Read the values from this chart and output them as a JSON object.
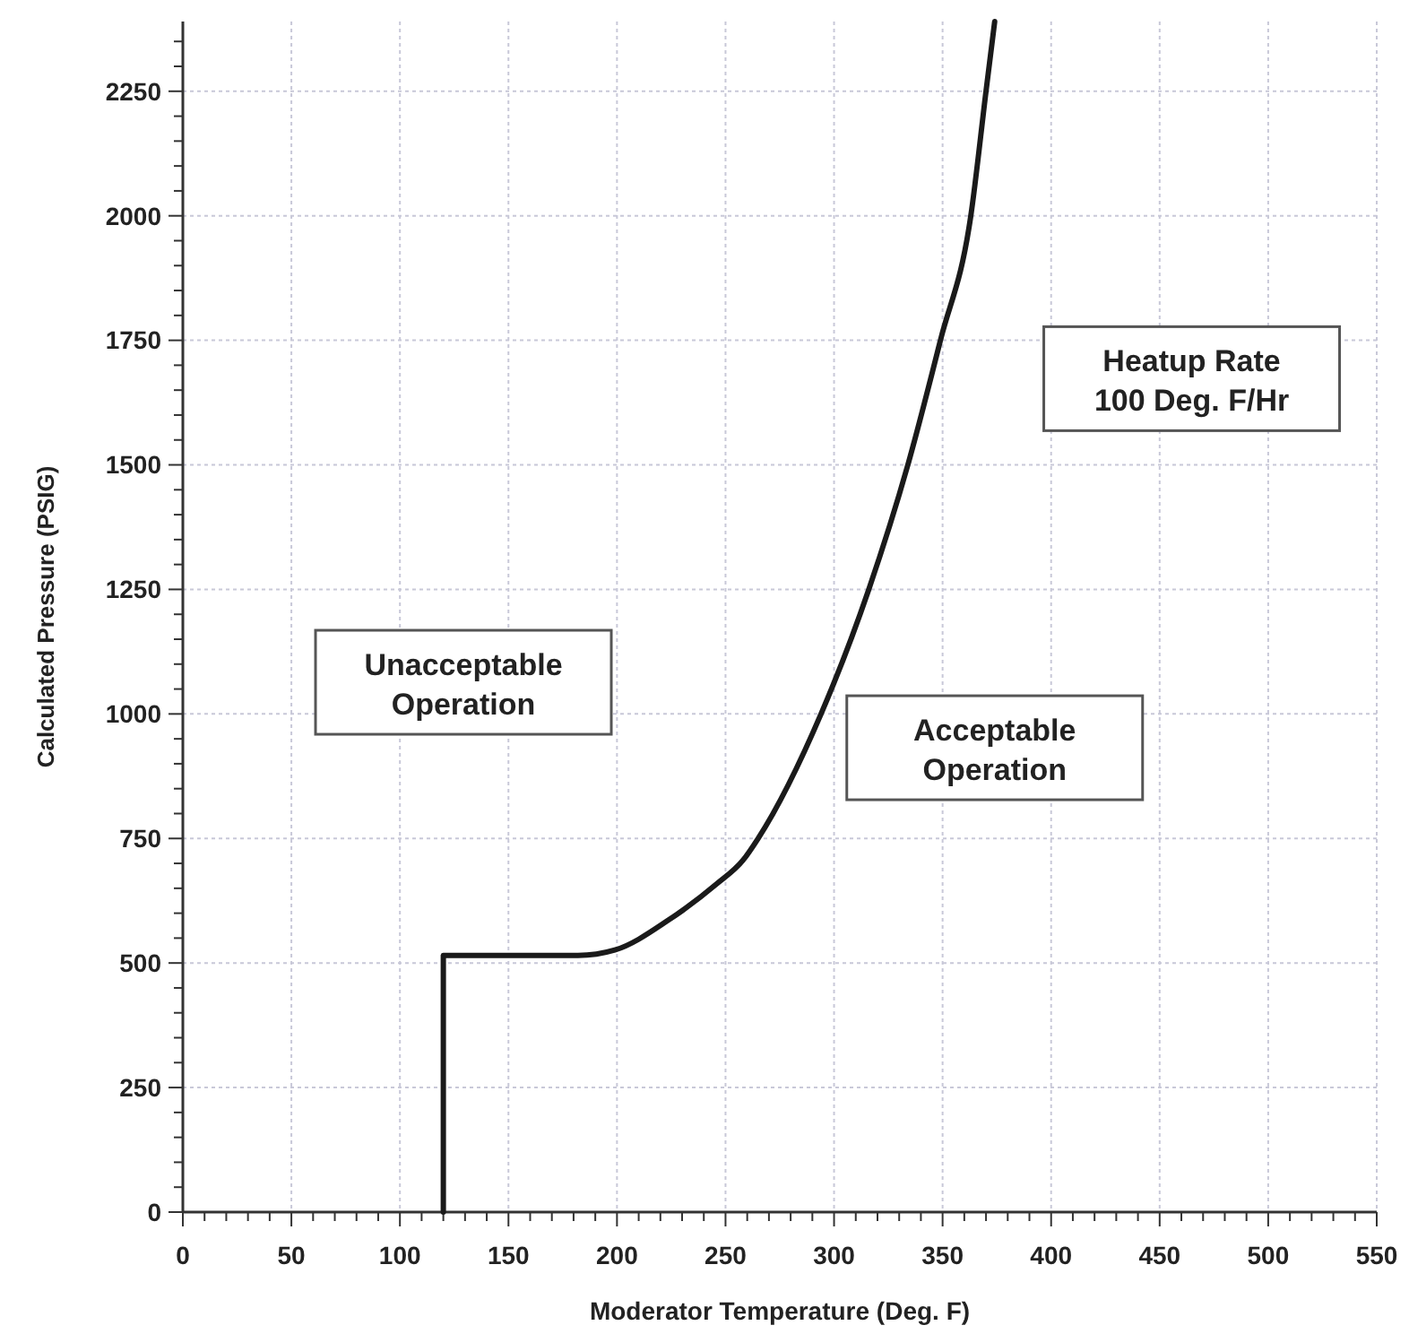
{
  "chart_data": {
    "type": "line",
    "xlabel": "Moderator Temperature (Deg. F)",
    "ylabel": "Calculated Pressure (PSIG)",
    "annotations": [
      "Unacceptable\nOperation",
      "Acceptable\nOperation",
      "Heatup Rate\n100 Deg. F/Hr"
    ],
    "x": [
      120,
      120,
      182,
      199,
      224,
      246,
      258,
      265,
      294,
      316,
      334,
      349,
      363,
      370,
      374
    ],
    "series": [
      {
        "color": "#1a1a1a",
        "values": [
          0,
          515,
          515,
          526,
          587,
          659,
          706,
          750,
          1000,
          1250,
          1500,
          1750,
          2000,
          2250,
          2390
        ]
      }
    ],
    "xlim": [
      0,
      550
    ],
    "xticks": [
      0,
      {
        "value": 10,
        "label": null
      },
      {
        "value": 20,
        "label": null
      },
      {
        "value": 30,
        "label": null
      },
      {
        "value": 40,
        "label": null
      },
      50,
      {
        "value": 60,
        "label": null
      },
      {
        "value": 70,
        "label": null
      },
      {
        "value": 80,
        "label": null
      },
      {
        "value": 90,
        "label": null
      },
      100,
      {
        "value": 110,
        "label": null
      },
      {
        "value": 120,
        "label": null
      },
      {
        "value": 130,
        "label": null
      },
      {
        "value": 140,
        "label": null
      },
      150,
      {
        "value": 160,
        "label": null
      },
      {
        "value": 170,
        "label": null
      },
      {
        "value": 180,
        "label": null
      },
      {
        "value": 190,
        "label": null
      },
      200,
      {
        "value": 210,
        "label": null
      },
      {
        "value": 220,
        "label": null
      },
      {
        "value": 230,
        "label": null
      },
      {
        "value": 240,
        "label": null
      },
      250,
      {
        "value": 260,
        "label": null
      },
      {
        "value": 270,
        "label": null
      },
      {
        "value": 280,
        "label": null
      },
      {
        "value": 290,
        "label": null
      },
      300,
      {
        "value": 310,
        "label": null
      },
      {
        "value": 320,
        "label": null
      },
      {
        "value": 330,
        "label": null
      },
      {
        "value": 340,
        "label": null
      },
      350,
      {
        "value": 360,
        "label": null
      },
      {
        "value": 370,
        "label": null
      },
      {
        "value": 380,
        "label": null
      },
      {
        "value": 390,
        "label": null
      },
      400,
      {
        "value": 410,
        "label": null
      },
      {
        "value": 420,
        "label": null
      },
      {
        "value": 430,
        "label": null
      },
      {
        "value": 440,
        "label": null
      },
      450,
      {
        "value": 460,
        "label": null
      },
      {
        "value": 470,
        "label": null
      },
      {
        "value": 480,
        "label": null
      },
      {
        "value": 490,
        "label": null
      },
      500,
      {
        "value": 510,
        "label": null
      },
      {
        "value": 520,
        "label": null
      },
      {
        "value": 530,
        "label": null
      },
      {
        "value": 540,
        "label": null
      },
      550
    ],
    "ylim": [
      0,
      2390
    ],
    "yticks": [
      0,
      {
        "value": 50,
        "label": null
      },
      {
        "value": 100,
        "label": null
      },
      {
        "value": 150,
        "label": null
      },
      {
        "value": 200,
        "label": null
      },
      250,
      {
        "value": 300,
        "label": null
      },
      {
        "value": 350,
        "label": null
      },
      {
        "value": 400,
        "label": null
      },
      {
        "value": 450,
        "label": null
      },
      500,
      {
        "value": 550,
        "label": null
      },
      {
        "value": 600,
        "label": null
      },
      {
        "value": 650,
        "label": null
      },
      {
        "value": 700,
        "label": null
      },
      750,
      {
        "value": 800,
        "label": null
      },
      {
        "value": 850,
        "label": null
      },
      {
        "value": 900,
        "label": null
      },
      {
        "value": 950,
        "label": null
      },
      1000,
      {
        "value": 1050,
        "label": null
      },
      {
        "value": 1100,
        "label": null
      },
      {
        "value": 1150,
        "label": null
      },
      {
        "value": 1200,
        "label": null
      },
      1250,
      {
        "value": 1300,
        "label": null
      },
      {
        "value": 1350,
        "label": null
      },
      {
        "value": 1400,
        "label": null
      },
      {
        "value": 1450,
        "label": null
      },
      1500,
      {
        "value": 1550,
        "label": null
      },
      {
        "value": 1600,
        "label": null
      },
      {
        "value": 1650,
        "label": null
      },
      {
        "value": 1700,
        "label": null
      },
      1750,
      {
        "value": 1800,
        "label": null
      },
      {
        "value": 1850,
        "label": null
      },
      {
        "value": 1900,
        "label": null
      },
      {
        "value": 1950,
        "label": null
      },
      2000,
      {
        "value": 2050,
        "label": null
      },
      {
        "value": 2100,
        "label": null
      },
      {
        "value": 2150,
        "label": null
      },
      {
        "value": 2200,
        "label": null
      },
      2250,
      {
        "value": 2300,
        "label": null
      },
      {
        "value": 2350,
        "label": null
      }
    ],
    "grid": true,
    "line_style": "solid",
    "marker": "none"
  }
}
